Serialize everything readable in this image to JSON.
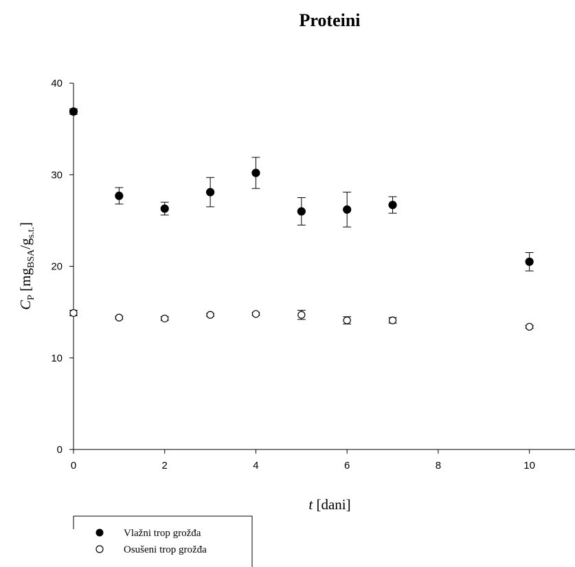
{
  "chart_data": {
    "type": "scatter",
    "title": "Proteini",
    "xlabel": {
      "var": "t",
      "unit": " [dani]"
    },
    "ylabel": {
      "var": "C",
      "var_sub": "P",
      "pre": " [mg",
      "sub1": "BSA",
      "mid": "/g",
      "sub2": "s.t.",
      "post": "]"
    },
    "xlim": [
      0,
      11
    ],
    "ylim": [
      0,
      40
    ],
    "xticks": [
      0,
      2,
      4,
      6,
      8,
      10
    ],
    "yticks": [
      0,
      10,
      20,
      30,
      40
    ],
    "grid": false,
    "legend_position": "bottom-left",
    "series": [
      {
        "name": "Vlažni trop grožđa",
        "marker": "filled-circle",
        "color": "#000000",
        "points": [
          {
            "x": 0,
            "y": 36.9,
            "err": 0.3
          },
          {
            "x": 1,
            "y": 27.7,
            "err": 0.9
          },
          {
            "x": 2,
            "y": 26.3,
            "err": 0.7
          },
          {
            "x": 3,
            "y": 28.1,
            "err": 1.6
          },
          {
            "x": 4,
            "y": 30.2,
            "err": 1.7
          },
          {
            "x": 5,
            "y": 26.0,
            "err": 1.5
          },
          {
            "x": 6,
            "y": 26.2,
            "err": 1.9
          },
          {
            "x": 7,
            "y": 26.7,
            "err": 0.9
          },
          {
            "x": 10,
            "y": 20.5,
            "err": 1.0
          }
        ]
      },
      {
        "name": "Osušeni trop grožđa",
        "marker": "open-circle",
        "color": "#000000",
        "points": [
          {
            "x": 0,
            "y": 14.9,
            "err": 0.3
          },
          {
            "x": 1,
            "y": 14.4,
            "err": 0.15
          },
          {
            "x": 2,
            "y": 14.3,
            "err": 0.2
          },
          {
            "x": 3,
            "y": 14.7,
            "err": 0.15
          },
          {
            "x": 4,
            "y": 14.8,
            "err": 0.15
          },
          {
            "x": 5,
            "y": 14.7,
            "err": 0.5
          },
          {
            "x": 6,
            "y": 14.1,
            "err": 0.4
          },
          {
            "x": 7,
            "y": 14.1,
            "err": 0.3
          },
          {
            "x": 10,
            "y": 13.4,
            "err": 0.15
          }
        ]
      }
    ]
  }
}
